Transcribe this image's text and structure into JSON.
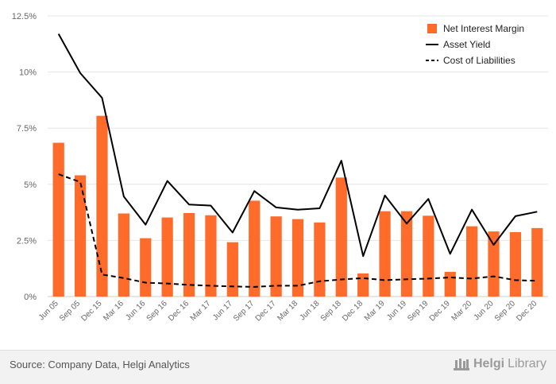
{
  "chart_data": {
    "type": "bar",
    "categories": [
      "Jun 05",
      "Sep 05",
      "Dec 15",
      "Mar 16",
      "Jun 16",
      "Sep 16",
      "Dec 16",
      "Mar 17",
      "Jun 17",
      "Sep 17",
      "Dec 17",
      "Mar 18",
      "Jun 18",
      "Sep 18",
      "Dec 18",
      "Mar 19",
      "Jun 19",
      "Sep 19",
      "Dec 19",
      "Mar 20",
      "Jun 20",
      "Sep 20",
      "Dec 20"
    ],
    "y_ticks": [
      "0%",
      "2.5%",
      "5%",
      "7.5%",
      "10%",
      "12.5%"
    ],
    "ylim": [
      0,
      12.5
    ],
    "grid": true,
    "legend_position": "top-right",
    "series": [
      {
        "name": "Net Interest Margin",
        "kind": "bar",
        "color": "#ff6b2b",
        "values": [
          6.85,
          5.4,
          8.05,
          3.7,
          2.6,
          3.52,
          3.72,
          3.62,
          2.42,
          4.27,
          3.57,
          3.45,
          3.3,
          5.3,
          1.03,
          3.8,
          3.8,
          3.6,
          1.1,
          3.13,
          2.9,
          2.87,
          3.05
        ]
      },
      {
        "name": "Asset Yield",
        "kind": "line",
        "color": "#000000",
        "dash": false,
        "values": [
          11.7,
          9.95,
          8.85,
          4.45,
          3.2,
          5.15,
          4.1,
          4.05,
          2.85,
          4.7,
          3.97,
          3.87,
          3.93,
          6.05,
          1.8,
          4.5,
          3.25,
          4.35,
          1.9,
          3.87,
          2.3,
          3.58,
          3.78
        ]
      },
      {
        "name": "Cost of Liabilities",
        "kind": "line",
        "color": "#000000",
        "dash": true,
        "values": [
          5.45,
          5.1,
          0.98,
          0.82,
          0.62,
          0.58,
          0.52,
          0.48,
          0.45,
          0.43,
          0.48,
          0.48,
          0.68,
          0.76,
          0.82,
          0.73,
          0.77,
          0.8,
          0.85,
          0.8,
          0.9,
          0.73,
          0.7
        ]
      }
    ]
  },
  "footer": {
    "source": "Source: Company Data, Helgi Analytics",
    "brand_part1": "Helgi",
    "brand_part2": "Library"
  }
}
